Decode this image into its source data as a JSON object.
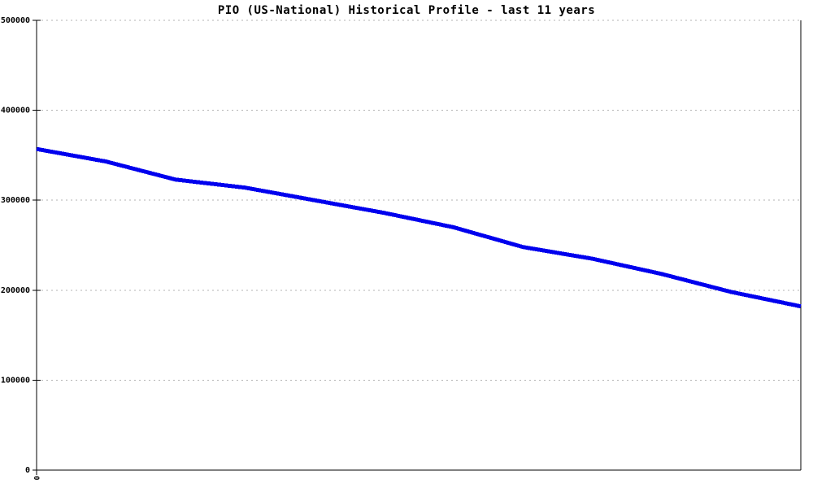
{
  "title": "PIO (US-National) Historical Profile - last 11 years",
  "colors": {
    "background": "#ffffff",
    "line": "#0000ee",
    "grid": "#b3b3b3",
    "axis": "#000000",
    "text": "#000000"
  },
  "chart_data": {
    "type": "line",
    "title": "PIO (US-National) Historical Profile - last 11 years",
    "xlabel": "",
    "ylabel": "",
    "x": [
      0,
      1,
      2,
      3,
      4,
      5,
      6,
      7,
      8,
      9,
      10,
      11
    ],
    "values": [
      357000,
      343000,
      323000,
      314000,
      300000,
      286000,
      270000,
      248000,
      235000,
      218000,
      198000,
      182000
    ],
    "series_name": "PIO (US-National)",
    "ylim": [
      0,
      500000
    ],
    "yticks": [
      0,
      100000,
      200000,
      300000,
      400000,
      500000
    ],
    "ytick_labels": [
      "0",
      "100000",
      "200000",
      "300000",
      "400000",
      "500000"
    ],
    "xtick_labels": [
      "0"
    ],
    "grid": "horizontal dotted",
    "legend_position": "none",
    "line_width": 5
  }
}
